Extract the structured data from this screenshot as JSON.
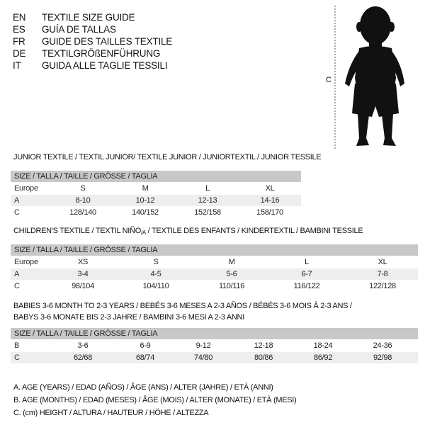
{
  "languages": [
    {
      "code": "EN",
      "title": "TEXTILE SIZE GUIDE"
    },
    {
      "code": "ES",
      "title": "GUÍA DE TALLAS"
    },
    {
      "code": "FR",
      "title": "GUIDE DES TAILLES TEXTILE"
    },
    {
      "code": "DE",
      "title": "TEXTILGRÖßENFÜHRUNG"
    },
    {
      "code": "IT",
      "title": "GUIDA ALLE TAGLIE TESSILI"
    }
  ],
  "figure": {
    "label": "C",
    "icon": "baby-silhouette"
  },
  "junior": {
    "title": "JUNIOR TEXTILE / TEXTIL JUNIOR/ TEXTILE JUNIOR / JUNIORTEXTIL / JUNIOR TESSILE",
    "header": "SIZE / TALLA / TAILLE / GRÖSSE / TAGLIA",
    "rows": [
      {
        "label": "Europe",
        "cells": [
          "S",
          "M",
          "L",
          "XL"
        ]
      },
      {
        "label": "A",
        "cells": [
          "8-10",
          "10-12",
          "12-13",
          "14-16"
        ]
      },
      {
        "label": "C",
        "cells": [
          "128/140",
          "140/152",
          "152/158",
          "158/170"
        ]
      }
    ]
  },
  "children": {
    "title": "CHILDREN'S TEXTILE / TEXTIL NIÑO",
    "title_sub": "/A",
    "title_rest": " / TEXTILE DES ENFANTS / KINDERTEXTIL / BAMBINI TESSILE",
    "header": "SIZE / TALLA / TAILLE / GRÖSSE / TAGLIA",
    "rows": [
      {
        "label": "Europe",
        "cells": [
          "XS",
          "S",
          "M",
          "L",
          "XL"
        ]
      },
      {
        "label": "A",
        "cells": [
          "3-4",
          "4-5",
          "5-6",
          "6-7",
          "7-8"
        ]
      },
      {
        "label": "C",
        "cells": [
          "98/104",
          "104/110",
          "110/116",
          "116/122",
          "122/128"
        ]
      }
    ]
  },
  "babies": {
    "title_line1": "BABIES 3-6 MONTH TO 2-3 YEARS / BEBÉS 3-6 MESES A 2-3 AÑOS / BÉBÉS 3-6 MOIS À 2-3 ANS /",
    "title_line2": "BABYS 3-6 MONATE BIS 2-3 JAHRE / BAMBINI 3-6 MESI A 2-3 ANNI",
    "header": "SIZE / TALLA / TAILLE / GRÖSSE / TAGLIA",
    "rows": [
      {
        "label": "B",
        "cells": [
          "3-6",
          "6-9",
          "9-12",
          "12-18",
          "18-24",
          "24-36"
        ]
      },
      {
        "label": "C",
        "cells": [
          "62/68",
          "68/74",
          "74/80",
          "80/86",
          "86/92",
          "92/98"
        ]
      }
    ]
  },
  "legend": [
    "A. AGE (YEARS) / EDAD (AÑOS) / ÂGE (ANS) / ALTER (JAHRE) / ETÀ (ANNI)",
    "B. AGE (MONTHS) / EDAD (MESES) / ÂGE (MOIS) / ALTER (MONATE) / ETÀ (MESI)",
    "C. (cm) HEIGHT / ALTURA / HAUTEUR / HÖHE / ALTEZZA"
  ]
}
